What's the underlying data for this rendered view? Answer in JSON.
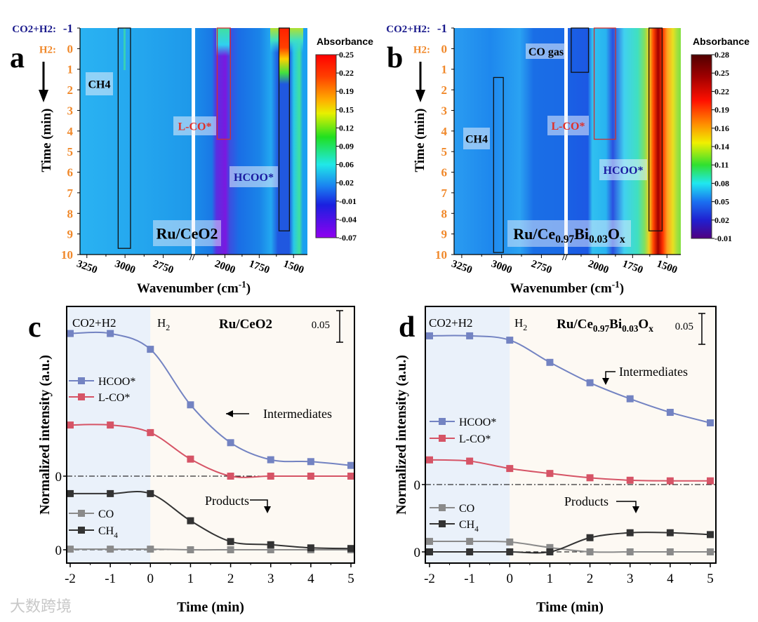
{
  "watermark": "大数跨境",
  "chart_data": [
    {
      "panel": "a",
      "type": "heatmap",
      "title": "Ru/CeO2",
      "xlabel": "Wavenumber (cm-1)",
      "ylabel": "Time (min)",
      "x_ticks": [
        3250,
        3000,
        2750,
        2000,
        1750,
        1500
      ],
      "x_segments": [
        [
          3295,
          2559
        ],
        [
          2217,
          1399
        ]
      ],
      "y_ticks": [
        -1,
        0,
        1,
        2,
        3,
        4,
        5,
        6,
        7,
        8,
        9,
        10
      ],
      "ylim": [
        -1,
        10
      ],
      "y_prefix": {
        "co2h2": "CO2+H2:",
        "h2": "H2:"
      },
      "colorbar": {
        "label": "Absorbance",
        "ticks": [
          "0.25",
          "0.22",
          "0.19",
          "0.15",
          "0.12",
          "0.09",
          "0.06",
          "0.02",
          "-0.01",
          "-0.04",
          "-0.07"
        ],
        "range": [
          -0.07,
          0.25
        ]
      },
      "annotations": [
        {
          "label": "CH4",
          "box_wavenumber": [
            3045,
            2964
          ],
          "box_time": [
            -1,
            9.7
          ],
          "color": "#000000"
        },
        {
          "label": "L-CO*",
          "box_wavenumber": [
            2056,
            1960
          ],
          "box_time": [
            -1,
            4.4
          ],
          "color": "#e0302a"
        },
        {
          "label": "HCOO*",
          "box_wavenumber": [
            1606,
            1530
          ],
          "box_time": [
            -1,
            8.85
          ],
          "color": "#1a1aa0"
        }
      ]
    },
    {
      "panel": "b",
      "type": "heatmap",
      "title": "Ru/Ce0.97Bi0.03Ox",
      "xlabel": "Wavenumber (cm-1)",
      "ylabel": "Time (min)",
      "x_ticks": [
        3250,
        3000,
        2750,
        2000,
        1750,
        1500
      ],
      "x_segments": [
        [
          3298,
          2602
        ],
        [
          2222,
          1399
        ]
      ],
      "y_ticks": [
        -1,
        0,
        1,
        2,
        3,
        4,
        5,
        6,
        7,
        8,
        9,
        10
      ],
      "ylim": [
        -1,
        10
      ],
      "y_prefix": {
        "co2h2": "CO2+H2:",
        "h2": "H2:"
      },
      "colorbar": {
        "label": "Absorbance",
        "ticks": [
          "0.28",
          "0.25",
          "0.22",
          "0.19",
          "0.16",
          "0.14",
          "0.11",
          "0.08",
          "0.05",
          "0.02",
          "-0.01"
        ],
        "range": [
          -0.01,
          0.28
        ]
      },
      "annotations": [
        {
          "label": "CO gas",
          "box_wavenumber": [
            2197,
            2071
          ],
          "box_time": [
            -1,
            1.15
          ],
          "color": "#000000"
        },
        {
          "label": "CH4",
          "box_wavenumber": [
            3050,
            2989
          ],
          "box_time": [
            1.4,
            9.9
          ],
          "color": "#000000"
        },
        {
          "label": "L-CO*",
          "box_wavenumber": [
            2030,
            1874
          ],
          "box_time": [
            -1,
            4.4
          ],
          "color": "#e0302a"
        },
        {
          "label": "HCOO*",
          "box_wavenumber": [
            1631,
            1535
          ],
          "box_time": [
            -1,
            8.85
          ],
          "color": "#1a1aa0"
        }
      ]
    },
    {
      "panel": "c",
      "type": "line",
      "title": "Ru/CeO2",
      "xlabel": "Time (min)",
      "ylabel": "Normalized intensity (a.u.)",
      "x": [
        -2,
        -1,
        0,
        1,
        2,
        3,
        4,
        5
      ],
      "x_ticks": [
        "-2",
        "-1",
        "0",
        "1",
        "2",
        "3",
        "4",
        "5"
      ],
      "xlim": [
        -2,
        5
      ],
      "zero_labels": [
        "0",
        "0"
      ],
      "regions": [
        "CO2+H2",
        "H2"
      ],
      "scale_bar": "0.05",
      "groups": {
        "intermediates": "Intermediates",
        "products": "Products"
      },
      "series": [
        {
          "name": "HCOO*",
          "group": "intermediates",
          "color": "#7383c2",
          "values": [
            0.226,
            0.226,
            0.201,
            0.113,
            0.053,
            0.026,
            0.023,
            0.017
          ]
        },
        {
          "name": "L-CO*",
          "group": "intermediates",
          "color": "#d65466",
          "values": [
            0.081,
            0.081,
            0.069,
            0.027,
            0.0,
            0.0,
            0.0,
            0.0
          ]
        },
        {
          "name": "CO",
          "group": "products",
          "color": "#8a8a8a",
          "values": [
            0.001,
            0.001,
            0.001,
            0.0,
            0.0,
            0.0,
            0.0,
            0.0
          ]
        },
        {
          "name": "CH4",
          "group": "products",
          "color": "#333333",
          "values": [
            0.089,
            0.089,
            0.089,
            0.046,
            0.013,
            0.008,
            0.003,
            0.002
          ]
        }
      ]
    },
    {
      "panel": "d",
      "type": "line",
      "title": "Ru/Ce0.97Bi0.03Ox",
      "xlabel": "Time (min)",
      "ylabel": "Normalized intensity (a.u.)",
      "x": [
        -2,
        -1,
        0,
        1,
        2,
        3,
        4,
        5
      ],
      "x_ticks": [
        "-2",
        "-1",
        "0",
        "1",
        "2",
        "3",
        "4",
        "5"
      ],
      "xlim": [
        -2,
        5
      ],
      "zero_labels": [
        "0",
        "0"
      ],
      "regions": [
        "CO2+H2",
        "H2"
      ],
      "scale_bar": "0.05",
      "groups": {
        "intermediates": "Intermediates",
        "products": "Products"
      },
      "series": [
        {
          "name": "HCOO*",
          "group": "intermediates",
          "color": "#7383c2",
          "values": [
            0.241,
            0.241,
            0.234,
            0.198,
            0.165,
            0.139,
            0.117,
            0.1
          ]
        },
        {
          "name": "L-CO*",
          "group": "intermediates",
          "color": "#d65466",
          "values": [
            0.04,
            0.038,
            0.026,
            0.018,
            0.011,
            0.007,
            0.006,
            0.006
          ]
        },
        {
          "name": "CO",
          "group": "products",
          "color": "#8a8a8a",
          "values": [
            0.017,
            0.017,
            0.016,
            0.007,
            0.0,
            0.0,
            0.0,
            0.0
          ]
        },
        {
          "name": "CH4",
          "group": "products",
          "color": "#333333",
          "values": [
            0.0,
            0.0,
            0.0,
            0.0,
            0.023,
            0.031,
            0.031,
            0.028
          ]
        }
      ]
    }
  ],
  "panel_letters": [
    "a",
    "b",
    "c",
    "d"
  ]
}
